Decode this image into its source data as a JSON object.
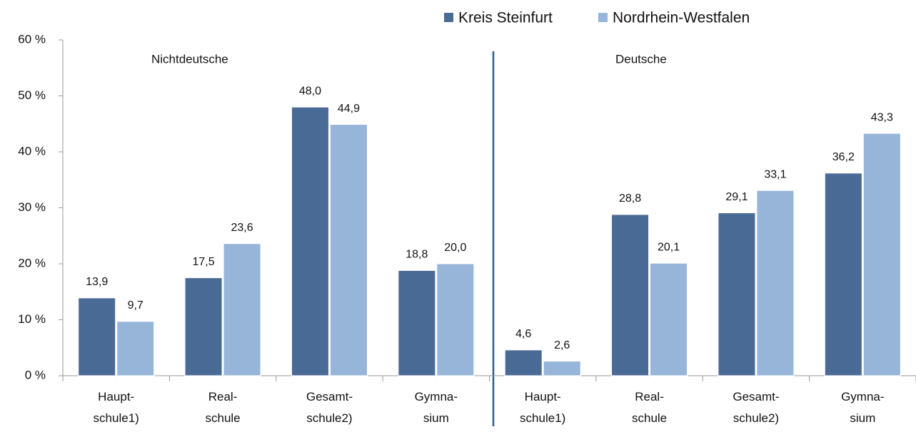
{
  "chart_data": {
    "type": "bar",
    "categories": [
      [
        "Haupt-",
        "schule1)"
      ],
      [
        "Real-",
        "schule"
      ],
      [
        "Gesamt-",
        "schule2)"
      ],
      [
        "Gymna-",
        "sium"
      ],
      [
        "Haupt-",
        "schule1)"
      ],
      [
        "Real-",
        "schule"
      ],
      [
        "Gesamt-",
        "schule2)"
      ],
      [
        "Gymna-",
        "sium"
      ]
    ],
    "series": [
      {
        "name": "Kreis Steinfurt",
        "color": "#4a6a96",
        "values": [
          13.9,
          17.5,
          48.0,
          18.8,
          4.6,
          28.8,
          29.1,
          36.2
        ],
        "value_labels": [
          "13,9",
          "17,5",
          "48,0",
          "18,8",
          "4,6",
          "28,8",
          "29,1",
          "36,2"
        ]
      },
      {
        "name": "Nordrhein-Westfalen",
        "color": "#97b4d9",
        "values": [
          9.7,
          23.6,
          44.9,
          20.0,
          2.6,
          20.1,
          33.1,
          43.3
        ],
        "value_labels": [
          "9,7",
          "23,6",
          "44,9",
          "20,0",
          "2,6",
          "20,1",
          "33,1",
          "43,3"
        ]
      }
    ],
    "annotations": [
      "Nichtdeutsche",
      "Deutsche"
    ],
    "ylim": [
      0,
      60
    ],
    "yticks": [
      {
        "value": 0,
        "label": "0 %"
      },
      {
        "value": 10,
        "label": "10 %"
      },
      {
        "value": 20,
        "label": "20 %"
      },
      {
        "value": 30,
        "label": "30 %"
      },
      {
        "value": 40,
        "label": "40 %"
      },
      {
        "value": 50,
        "label": "50 %"
      },
      {
        "value": 60,
        "label": "60 %"
      }
    ],
    "grid": false,
    "legend": "top"
  }
}
